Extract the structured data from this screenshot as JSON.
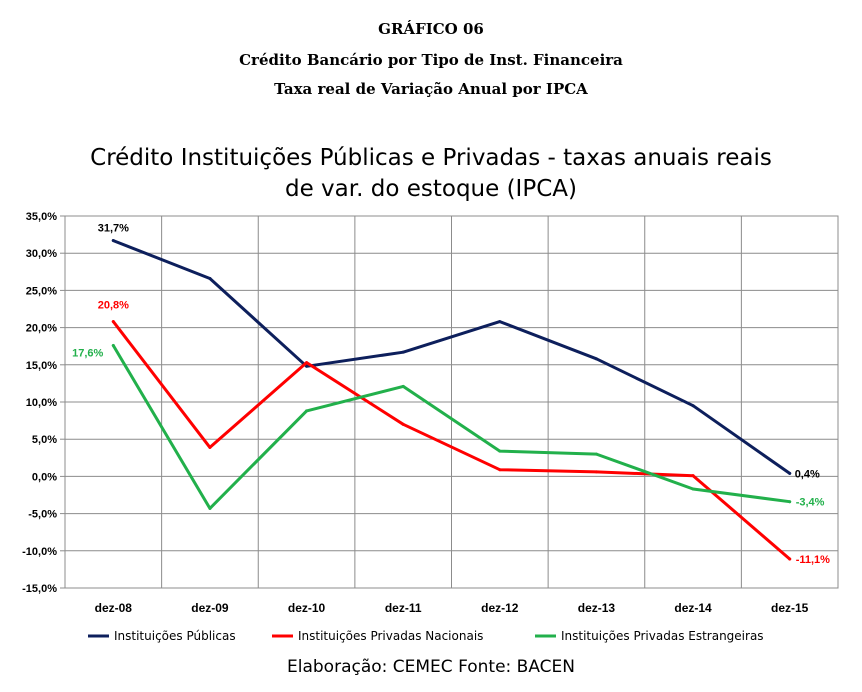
{
  "header": {
    "line1": "GRÁFICO 06",
    "line2": "Crédito Bancário por Tipo de Inst. Financeira",
    "line3": "Taxa real de Variação Anual por IPCA"
  },
  "chart_data": {
    "type": "line",
    "title_line1": "Crédito Instituições Públicas e Privadas - taxas anuais reais",
    "title_line2": "de var. do estoque  (IPCA)",
    "categories": [
      "dez-08",
      "dez-09",
      "dez-10",
      "dez-11",
      "dez-12",
      "dez-13",
      "dez-14",
      "dez-15"
    ],
    "ylim": [
      -15,
      35
    ],
    "yticks": [
      "-15,0%",
      "-10,0%",
      "-5,0%",
      "0,0%",
      "5,0%",
      "10,0%",
      "15,0%",
      "20,0%",
      "25,0%",
      "30,0%",
      "35,0%"
    ],
    "grid": true,
    "legend_position": "bottom",
    "series": [
      {
        "name": "Instituições Públicas",
        "color": "#0d1f5c",
        "values": [
          31.7,
          26.6,
          14.8,
          16.7,
          20.8,
          15.8,
          9.5,
          0.4
        ],
        "labels": [
          {
            "index": 0,
            "text": "31,7%"
          },
          {
            "index": 7,
            "text": "0,4%"
          }
        ]
      },
      {
        "name": "Instituições Privadas Nacionais",
        "color": "#ff0000",
        "values": [
          20.8,
          3.9,
          15.3,
          7.0,
          0.9,
          0.6,
          0.1,
          -11.1
        ],
        "labels": [
          {
            "index": 0,
            "text": "20,8%"
          },
          {
            "index": 7,
            "text": "-11,1%"
          }
        ]
      },
      {
        "name": "Instituições Privadas Estrangeiras",
        "color": "#22b04b",
        "values": [
          17.6,
          -4.3,
          8.8,
          12.1,
          3.4,
          3.0,
          -1.7,
          -3.4
        ],
        "labels": [
          {
            "index": 0,
            "text": "17,6%"
          },
          {
            "index": 7,
            "text": "-3,4%"
          }
        ]
      }
    ]
  },
  "footer": "Elaboração: CEMEC Fonte: BACEN"
}
